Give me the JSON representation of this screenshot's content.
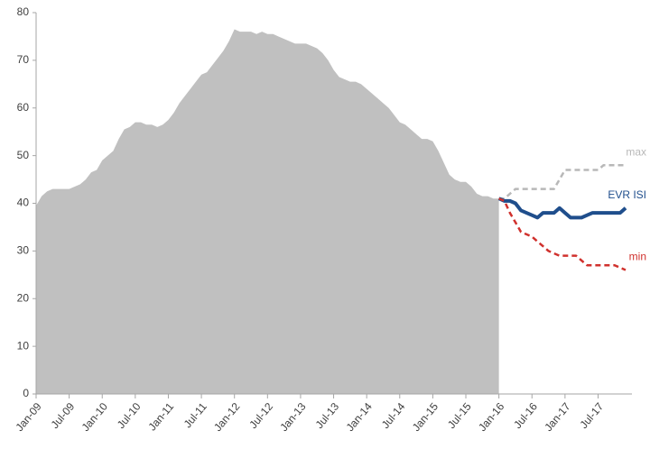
{
  "chart_data": {
    "type": "area",
    "categories": [
      "Jan-09",
      null,
      null,
      null,
      null,
      null,
      "Jul-09",
      null,
      null,
      null,
      null,
      null,
      "Jan-10",
      null,
      null,
      null,
      null,
      null,
      "Jul-10",
      null,
      null,
      null,
      null,
      null,
      "Jan-11",
      null,
      null,
      null,
      null,
      null,
      "Jul-11",
      null,
      null,
      null,
      null,
      null,
      "Jan-12",
      null,
      null,
      null,
      null,
      null,
      "Jul-12",
      null,
      null,
      null,
      null,
      null,
      "Jan-13",
      null,
      null,
      null,
      null,
      null,
      "Jul-13",
      null,
      null,
      null,
      null,
      null,
      "Jan-14",
      null,
      null,
      null,
      null,
      null,
      "Jul-14",
      null,
      null,
      null,
      null,
      null,
      "Jan-15",
      null,
      null,
      null,
      null,
      null,
      "Jul-15",
      null,
      null,
      null,
      null,
      null,
      "Jan-16",
      null,
      null,
      null,
      null,
      null,
      "Jul-16",
      null,
      null,
      null,
      null,
      null,
      "Jan-17",
      null,
      null,
      null,
      null,
      null,
      "Jul-17",
      null,
      null,
      null,
      null,
      null
    ],
    "series": [
      {
        "kind": "area",
        "color": "#c0c0c0",
        "values": [
          39.5,
          41.5,
          42.5,
          43,
          43,
          43,
          43,
          43.5,
          44,
          45,
          46.5,
          47,
          49,
          50,
          51,
          53.5,
          55.5,
          56,
          57,
          57,
          56.5,
          56.5,
          56,
          56.5,
          57.5,
          59,
          61,
          62.5,
          64,
          65.5,
          67,
          67.5,
          69,
          70.5,
          72,
          74,
          76.5,
          76,
          76,
          76,
          75.5,
          76,
          75.5,
          75.5,
          75,
          74.5,
          74,
          73.5,
          73.5,
          73.5,
          73,
          72.5,
          71.5,
          70,
          68,
          66.5,
          66,
          65.5,
          65.5,
          65,
          64,
          63,
          62,
          61,
          60,
          58.5,
          57,
          56.5,
          55.5,
          54.5,
          53.5,
          53.5,
          53,
          51,
          48.5,
          46,
          45,
          44.5,
          44.5,
          43.5,
          42,
          41.5,
          41.5,
          41,
          41,
          null,
          null,
          null,
          null,
          null,
          null,
          null,
          null,
          null,
          null,
          null,
          null,
          null,
          null,
          null,
          null,
          null,
          null,
          null,
          null,
          null,
          null,
          null
        ]
      },
      {
        "name": "max",
        "kind": "line",
        "dashed": true,
        "color": "#b8b8b8",
        "values": [
          null,
          null,
          null,
          null,
          null,
          null,
          null,
          null,
          null,
          null,
          null,
          null,
          null,
          null,
          null,
          null,
          null,
          null,
          null,
          null,
          null,
          null,
          null,
          null,
          null,
          null,
          null,
          null,
          null,
          null,
          null,
          null,
          null,
          null,
          null,
          null,
          null,
          null,
          null,
          null,
          null,
          null,
          null,
          null,
          null,
          null,
          null,
          null,
          null,
          null,
          null,
          null,
          null,
          null,
          null,
          null,
          null,
          null,
          null,
          null,
          null,
          null,
          null,
          null,
          null,
          null,
          null,
          null,
          null,
          null,
          null,
          null,
          null,
          null,
          null,
          null,
          null,
          null,
          null,
          null,
          null,
          null,
          null,
          null,
          41,
          41,
          42,
          43,
          43,
          43,
          43,
          43,
          43,
          43,
          43,
          45,
          47,
          47,
          47,
          47,
          47,
          47,
          47,
          48,
          48,
          48,
          48,
          48
        ]
      },
      {
        "name": "EVR ISI",
        "kind": "line",
        "dashed": false,
        "color": "#1f4e8c",
        "values": [
          null,
          null,
          null,
          null,
          null,
          null,
          null,
          null,
          null,
          null,
          null,
          null,
          null,
          null,
          null,
          null,
          null,
          null,
          null,
          null,
          null,
          null,
          null,
          null,
          null,
          null,
          null,
          null,
          null,
          null,
          null,
          null,
          null,
          null,
          null,
          null,
          null,
          null,
          null,
          null,
          null,
          null,
          null,
          null,
          null,
          null,
          null,
          null,
          null,
          null,
          null,
          null,
          null,
          null,
          null,
          null,
          null,
          null,
          null,
          null,
          null,
          null,
          null,
          null,
          null,
          null,
          null,
          null,
          null,
          null,
          null,
          null,
          null,
          null,
          null,
          null,
          null,
          null,
          null,
          null,
          null,
          null,
          null,
          null,
          41,
          40.5,
          40.5,
          40,
          38.5,
          38,
          37.5,
          37,
          38,
          38,
          38,
          39,
          38,
          37,
          37,
          37,
          37.5,
          38,
          38,
          38,
          38,
          38,
          38,
          39
        ]
      },
      {
        "name": "min",
        "kind": "line",
        "dashed": true,
        "color": "#d0312d",
        "values": [
          null,
          null,
          null,
          null,
          null,
          null,
          null,
          null,
          null,
          null,
          null,
          null,
          null,
          null,
          null,
          null,
          null,
          null,
          null,
          null,
          null,
          null,
          null,
          null,
          null,
          null,
          null,
          null,
          null,
          null,
          null,
          null,
          null,
          null,
          null,
          null,
          null,
          null,
          null,
          null,
          null,
          null,
          null,
          null,
          null,
          null,
          null,
          null,
          null,
          null,
          null,
          null,
          null,
          null,
          null,
          null,
          null,
          null,
          null,
          null,
          null,
          null,
          null,
          null,
          null,
          null,
          null,
          null,
          null,
          null,
          null,
          null,
          null,
          null,
          null,
          null,
          null,
          null,
          null,
          null,
          null,
          null,
          null,
          null,
          41,
          40.5,
          38,
          36,
          34,
          33.5,
          33,
          32,
          31,
          30,
          29.5,
          29,
          29,
          29,
          29,
          28,
          27,
          27,
          27,
          27,
          27,
          27,
          26.5,
          26
        ]
      }
    ],
    "ylim": [
      0,
      80
    ],
    "yticks": [
      0,
      10,
      20,
      30,
      40,
      50,
      60,
      70,
      80
    ]
  }
}
